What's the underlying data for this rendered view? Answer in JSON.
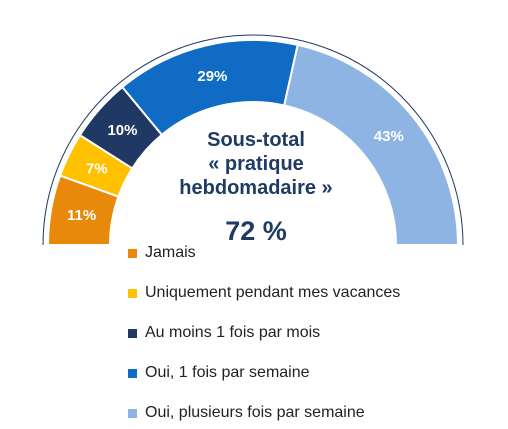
{
  "chart_data": {
    "type": "pie",
    "variant": "half-donut",
    "categories": [
      "Jamais",
      "Uniquement pendant mes vacances",
      "Au moins 1 fois par mois",
      "Oui, 1 fois par semaine",
      "Oui, plusieurs fois par semaine"
    ],
    "values": [
      11,
      7,
      10,
      29,
      43
    ],
    "labels": [
      "11%",
      "7%",
      "10%",
      "29%",
      "43%"
    ],
    "colors": [
      "#e8890c",
      "#ffc000",
      "#1f3864",
      "#0f6bc4",
      "#8eb4e3"
    ],
    "legend_position": "bottom-center"
  },
  "subtotal": {
    "title_line1": "Sous-total",
    "title_line2": "« pratique",
    "title_line3": "hebdomadaire »",
    "value": "72 %"
  }
}
